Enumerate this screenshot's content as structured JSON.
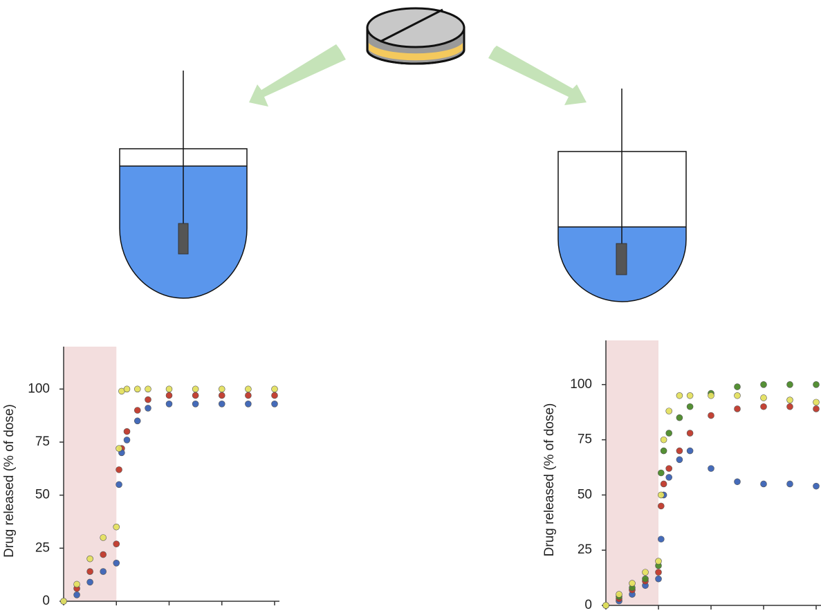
{
  "chart_data": [
    {
      "type": "scatter",
      "y_label": "Drug released  (% of dose)",
      "x": [
        0,
        0.25,
        0.5,
        0.75,
        1,
        1.05,
        1.1,
        1.2,
        1.4,
        1.6,
        2,
        2.5,
        3,
        3.5,
        4
      ],
      "xlim": [
        0,
        4
      ],
      "xticks": [
        0,
        1,
        2,
        3,
        4
      ],
      "ylim": [
        0,
        120
      ],
      "yticks": [
        0,
        25,
        50,
        75,
        100
      ],
      "shaded_xlim": [
        0,
        1
      ],
      "shade_color": "#f3dede",
      "series": [
        {
          "color": "#c0392b",
          "values": [
            0,
            6,
            14,
            22,
            27,
            62,
            72,
            80,
            90,
            95,
            97,
            97,
            97,
            97,
            97
          ]
        },
        {
          "color": "#3b63b5",
          "values": [
            0,
            3,
            9,
            14,
            18,
            55,
            70,
            76,
            85,
            91,
            93,
            93,
            93,
            93,
            93
          ]
        },
        {
          "color": "#e4e060",
          "values": [
            0,
            8,
            20,
            30,
            35,
            72,
            99,
            100,
            100,
            100,
            100,
            100,
            100,
            100,
            100
          ]
        }
      ]
    },
    {
      "type": "scatter",
      "y_label": "Drug released  (% of dose)",
      "x": [
        0,
        0.25,
        0.5,
        0.75,
        1,
        1.05,
        1.1,
        1.2,
        1.4,
        1.6,
        2,
        2.5,
        3,
        3.5,
        4
      ],
      "xlim": [
        0,
        4
      ],
      "xticks": [
        0,
        1,
        2,
        3,
        4
      ],
      "ylim": [
        0,
        120
      ],
      "yticks": [
        0,
        25,
        50,
        75,
        100
      ],
      "shaded_xlim": [
        0,
        1
      ],
      "shade_color": "#f3dede",
      "series": [
        {
          "color": "#3b63b5",
          "values": [
            0,
            2,
            5,
            9,
            12,
            30,
            50,
            58,
            66,
            70,
            62,
            56,
            55,
            55,
            54
          ]
        },
        {
          "color": "#c0392b",
          "values": [
            0,
            3,
            7,
            11,
            15,
            45,
            55,
            62,
            70,
            78,
            86,
            89,
            90,
            90,
            89
          ]
        },
        {
          "color": "#4c8a2a",
          "values": [
            0,
            4,
            8,
            12,
            18,
            60,
            70,
            78,
            85,
            90,
            96,
            99,
            100,
            100,
            100
          ]
        },
        {
          "color": "#e4e060",
          "values": [
            0,
            5,
            10,
            15,
            20,
            50,
            75,
            88,
            95,
            95,
            95,
            95,
            94,
            93,
            92
          ]
        }
      ]
    }
  ]
}
